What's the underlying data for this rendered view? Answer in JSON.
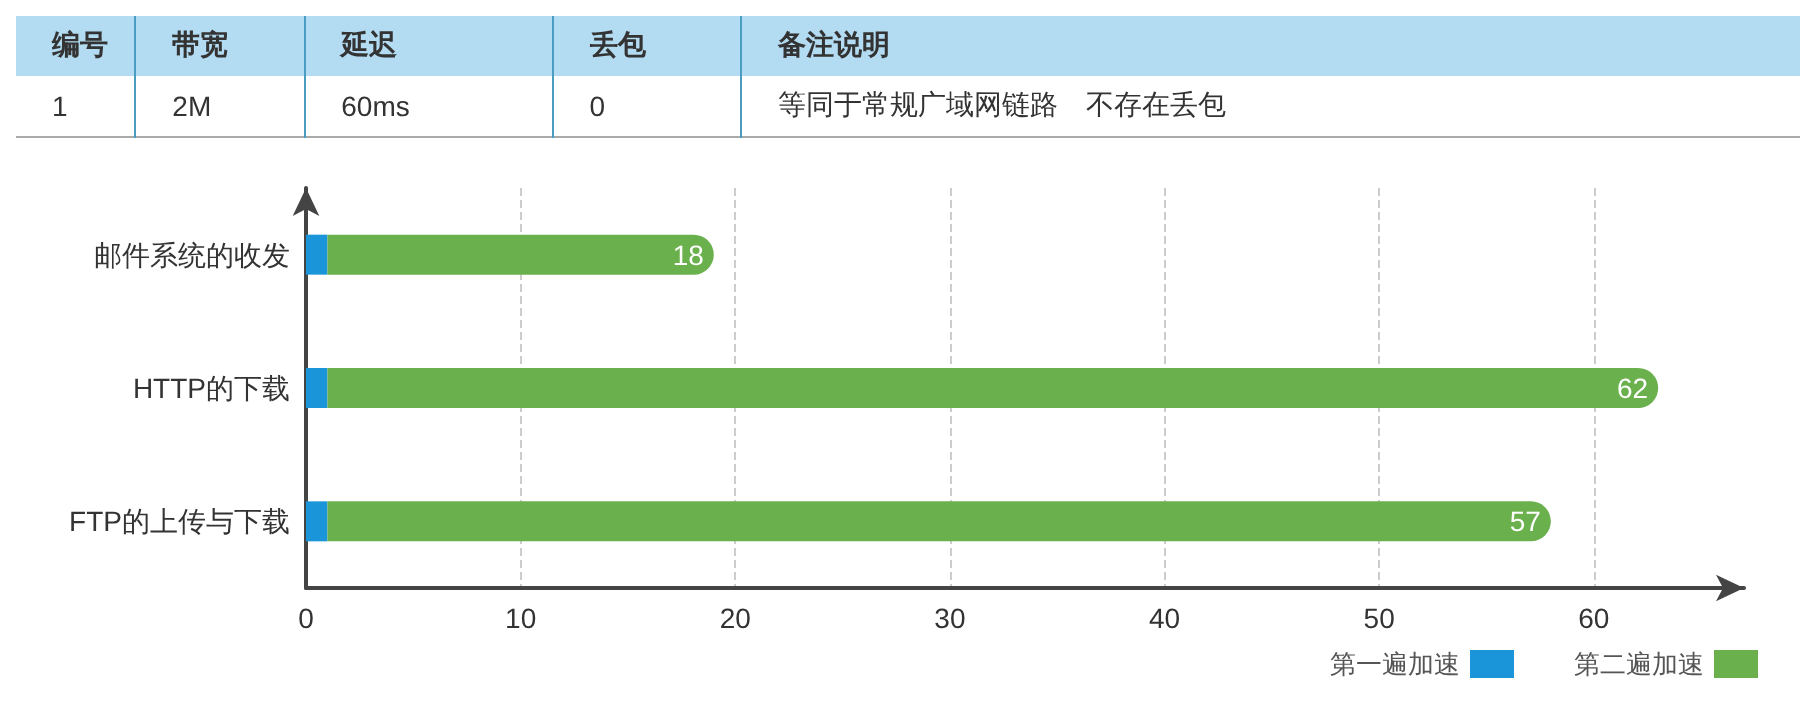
{
  "chart_data": [
    {
      "type": "other",
      "categories": [
        "编号",
        "带宽",
        "延迟",
        "丢包",
        "备注说明"
      ],
      "cell_labels": [
        [
          "1",
          "2M",
          "60ms",
          "0",
          "等同于常规广域网链路　不存在丢包"
        ]
      ]
    },
    {
      "type": "bar",
      "orientation": "horizontal",
      "stacked": true,
      "categories": [
        "邮件系统的收发",
        "HTTP的下载",
        "FTP的上传与下载"
      ],
      "series": [
        {
          "name": "第一遍加速",
          "color": "#1b95d9",
          "values": [
            1,
            1,
            1
          ]
        },
        {
          "name": "第二遍加速",
          "color": "#6ab04c",
          "values": [
            18,
            62,
            57
          ],
          "value_labels": [
            "18",
            "62",
            "57"
          ]
        }
      ],
      "xlim": [
        0,
        67
      ],
      "xticks": [
        0,
        10,
        20,
        30,
        40,
        50,
        60
      ],
      "grid": "x",
      "legend": "bottom right"
    }
  ]
}
